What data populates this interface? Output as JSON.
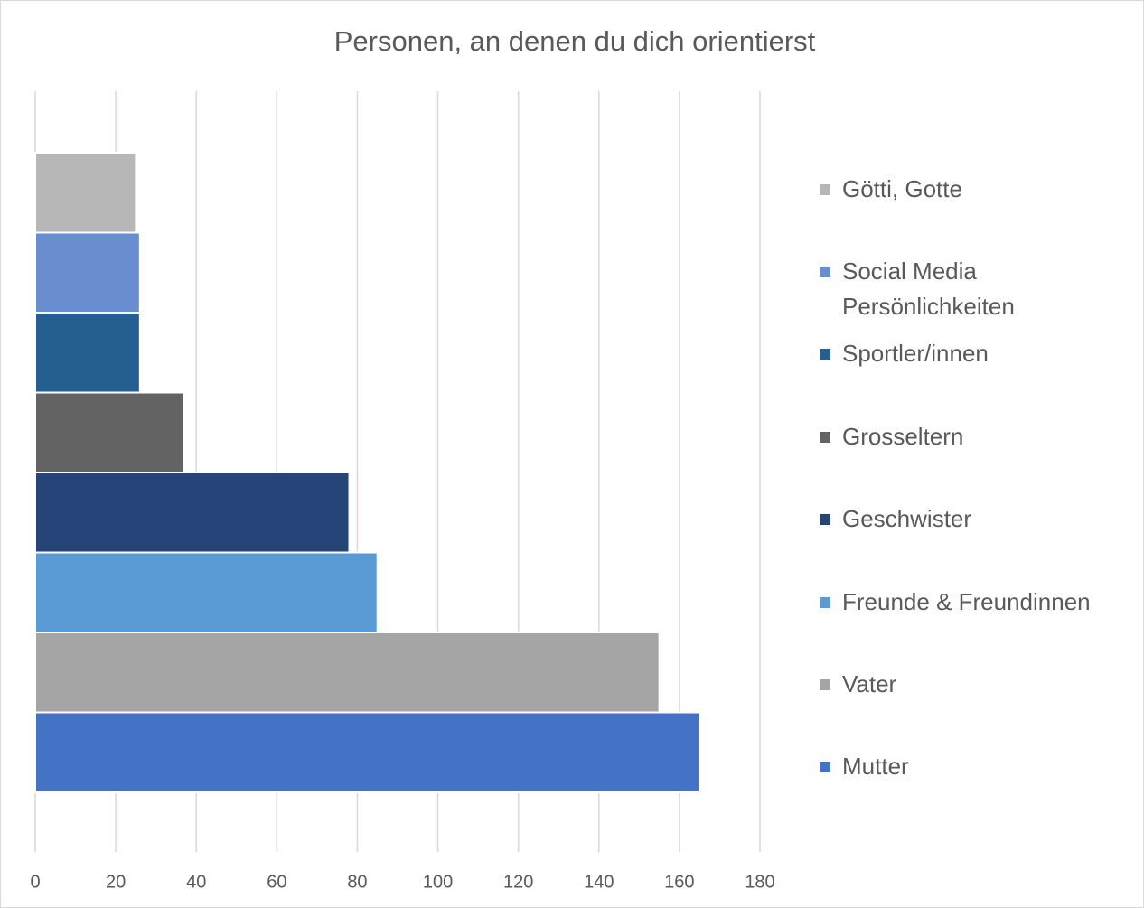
{
  "chart_data": {
    "type": "bar",
    "orientation": "horizontal",
    "title": "Personen, an denen du dich orientierst",
    "series": [
      {
        "name": "Mutter",
        "color": "#4472c4",
        "values": [
          165
        ]
      },
      {
        "name": "Vater",
        "color": "#a5a5a5",
        "values": [
          155
        ]
      },
      {
        "name": "Freunde & Freundinnen",
        "color": "#5b9bd5",
        "values": [
          85
        ]
      },
      {
        "name": "Geschwister",
        "color": "#264478",
        "values": [
          78
        ]
      },
      {
        "name": "Grosseltern",
        "color": "#636363",
        "values": [
          37
        ]
      },
      {
        "name": "Sportler/innen",
        "color": "#255e91",
        "values": [
          26
        ]
      },
      {
        "name": "Social Media Persönlichkeiten",
        "color": "#698ed0",
        "values": [
          26
        ]
      },
      {
        "name": "Götti, Gotte",
        "color": "#b7b7b7",
        "values": [
          25
        ]
      }
    ],
    "xlim": [
      0,
      180
    ],
    "xticks": [
      0,
      20,
      40,
      60,
      80,
      100,
      120,
      140,
      160,
      180
    ],
    "grid": true,
    "legend": "right"
  }
}
